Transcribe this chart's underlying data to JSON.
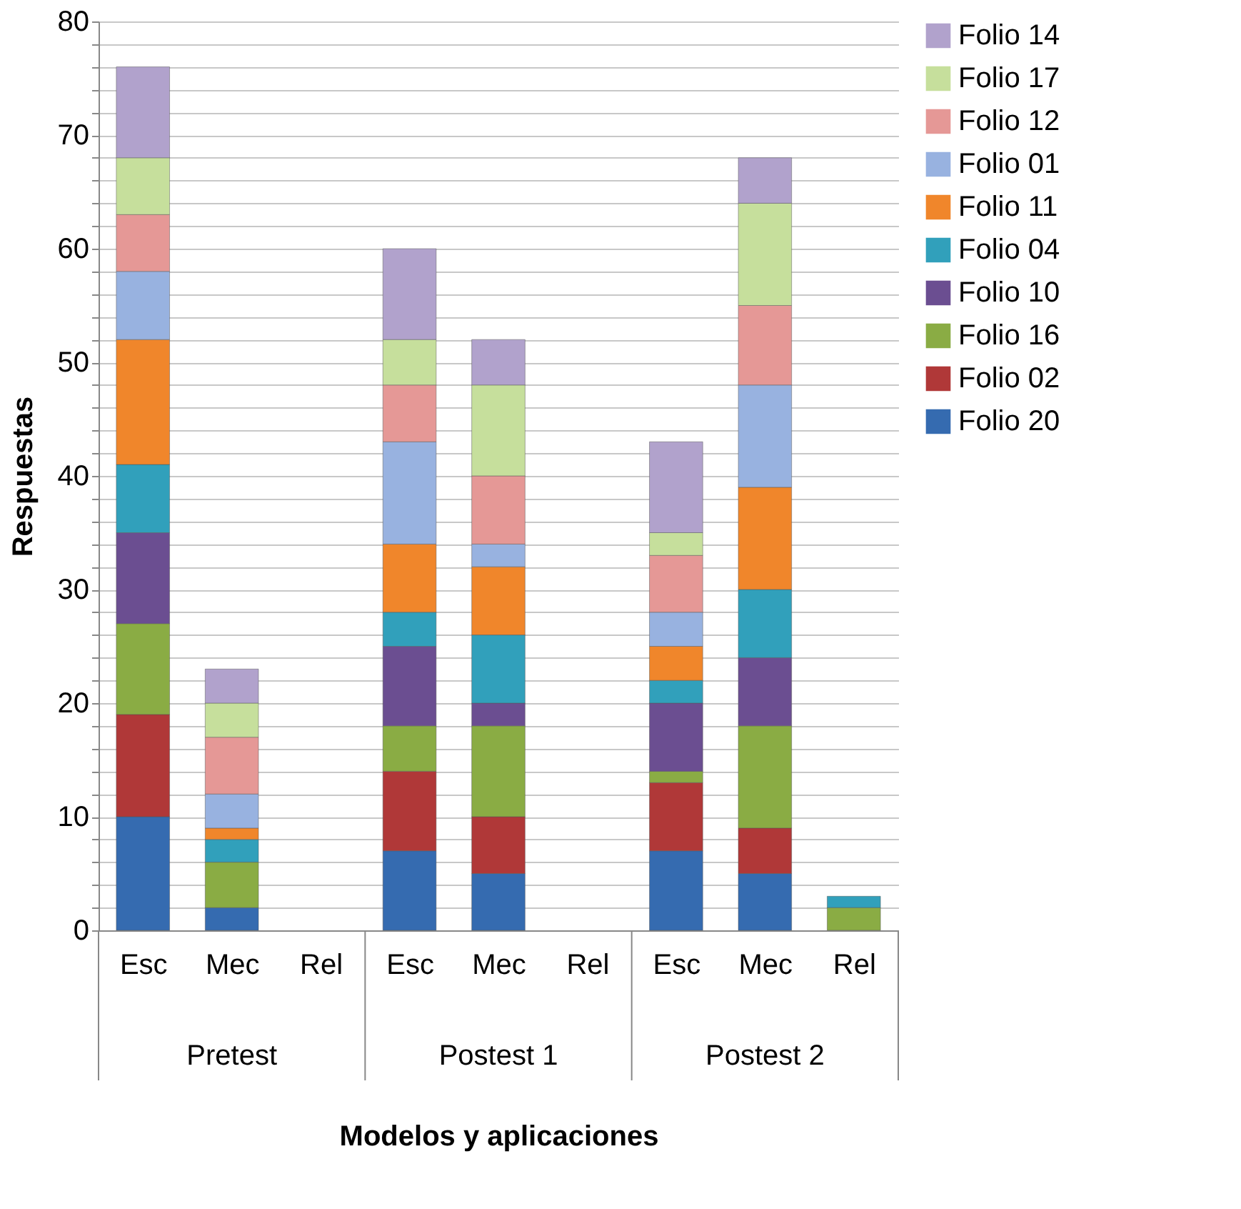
{
  "chart_data": {
    "type": "bar",
    "stacked": true,
    "xlabel": "Modelos y aplicaciones",
    "ylabel": "Respuestas",
    "categories": [
      "Esc",
      "Mec",
      "Rel",
      "Esc",
      "Mec",
      "Rel",
      "Esc",
      "Mec",
      "Rel"
    ],
    "annotations": [
      "Pretest",
      "Postest 1",
      "Postest 2"
    ],
    "series": [
      {
        "name": "Folio 20",
        "color": "#356bb0",
        "values": [
          10,
          2,
          0,
          7,
          5,
          0,
          7,
          5,
          0
        ]
      },
      {
        "name": "Folio 02",
        "color": "#b03838",
        "values": [
          9,
          0,
          0,
          7,
          5,
          0,
          6,
          4,
          0
        ]
      },
      {
        "name": "Folio 16",
        "color": "#8aac44",
        "values": [
          8,
          4,
          0,
          4,
          8,
          0,
          1,
          9,
          2
        ]
      },
      {
        "name": "Folio 10",
        "color": "#6b4e91",
        "values": [
          8,
          0,
          0,
          7,
          2,
          0,
          6,
          6,
          0
        ]
      },
      {
        "name": "Folio 04",
        "color": "#31a0bb",
        "values": [
          6,
          2,
          0,
          3,
          6,
          0,
          2,
          6,
          1
        ]
      },
      {
        "name": "Folio 11",
        "color": "#f0862b",
        "values": [
          11,
          1,
          0,
          6,
          6,
          0,
          3,
          9,
          0
        ]
      },
      {
        "name": "Folio 01",
        "color": "#98b2e0",
        "values": [
          6,
          3,
          0,
          9,
          2,
          0,
          3,
          9,
          0
        ]
      },
      {
        "name": "Folio 12",
        "color": "#e59896",
        "values": [
          5,
          5,
          0,
          5,
          6,
          0,
          5,
          7,
          0
        ]
      },
      {
        "name": "Folio 17",
        "color": "#c6df9c",
        "values": [
          5,
          3,
          0,
          4,
          8,
          0,
          2,
          9,
          0
        ]
      },
      {
        "name": "Folio 14",
        "color": "#b1a2cc",
        "values": [
          8,
          3,
          0,
          8,
          4,
          0,
          8,
          4,
          0
        ]
      }
    ],
    "ylim": [
      0,
      80
    ],
    "yticks": [
      0,
      {
        "value": 2,
        "label": null
      },
      {
        "value": 4,
        "label": null
      },
      {
        "value": 6,
        "label": null
      },
      {
        "value": 8,
        "label": null
      },
      10,
      {
        "value": 12,
        "label": null
      },
      {
        "value": 14,
        "label": null
      },
      {
        "value": 16,
        "label": null
      },
      {
        "value": 18,
        "label": null
      },
      20,
      {
        "value": 22,
        "label": null
      },
      {
        "value": 24,
        "label": null
      },
      {
        "value": 26,
        "label": null
      },
      {
        "value": 28,
        "label": null
      },
      30,
      {
        "value": 32,
        "label": null
      },
      {
        "value": 34,
        "label": null
      },
      {
        "value": 36,
        "label": null
      },
      {
        "value": 38,
        "label": null
      },
      40,
      {
        "value": 42,
        "label": null
      },
      {
        "value": 44,
        "label": null
      },
      {
        "value": 46,
        "label": null
      },
      {
        "value": 48,
        "label": null
      },
      50,
      {
        "value": 52,
        "label": null
      },
      {
        "value": 54,
        "label": null
      },
      {
        "value": 56,
        "label": null
      },
      {
        "value": 58,
        "label": null
      },
      60,
      {
        "value": 62,
        "label": null
      },
      {
        "value": 64,
        "label": null
      },
      {
        "value": 66,
        "label": null
      },
      {
        "value": 68,
        "label": null
      },
      70,
      {
        "value": 72,
        "label": null
      },
      {
        "value": 74,
        "label": null
      },
      {
        "value": 76,
        "label": null
      },
      {
        "value": 78,
        "label": null
      },
      80
    ],
    "grid": "y",
    "legend": "right"
  }
}
